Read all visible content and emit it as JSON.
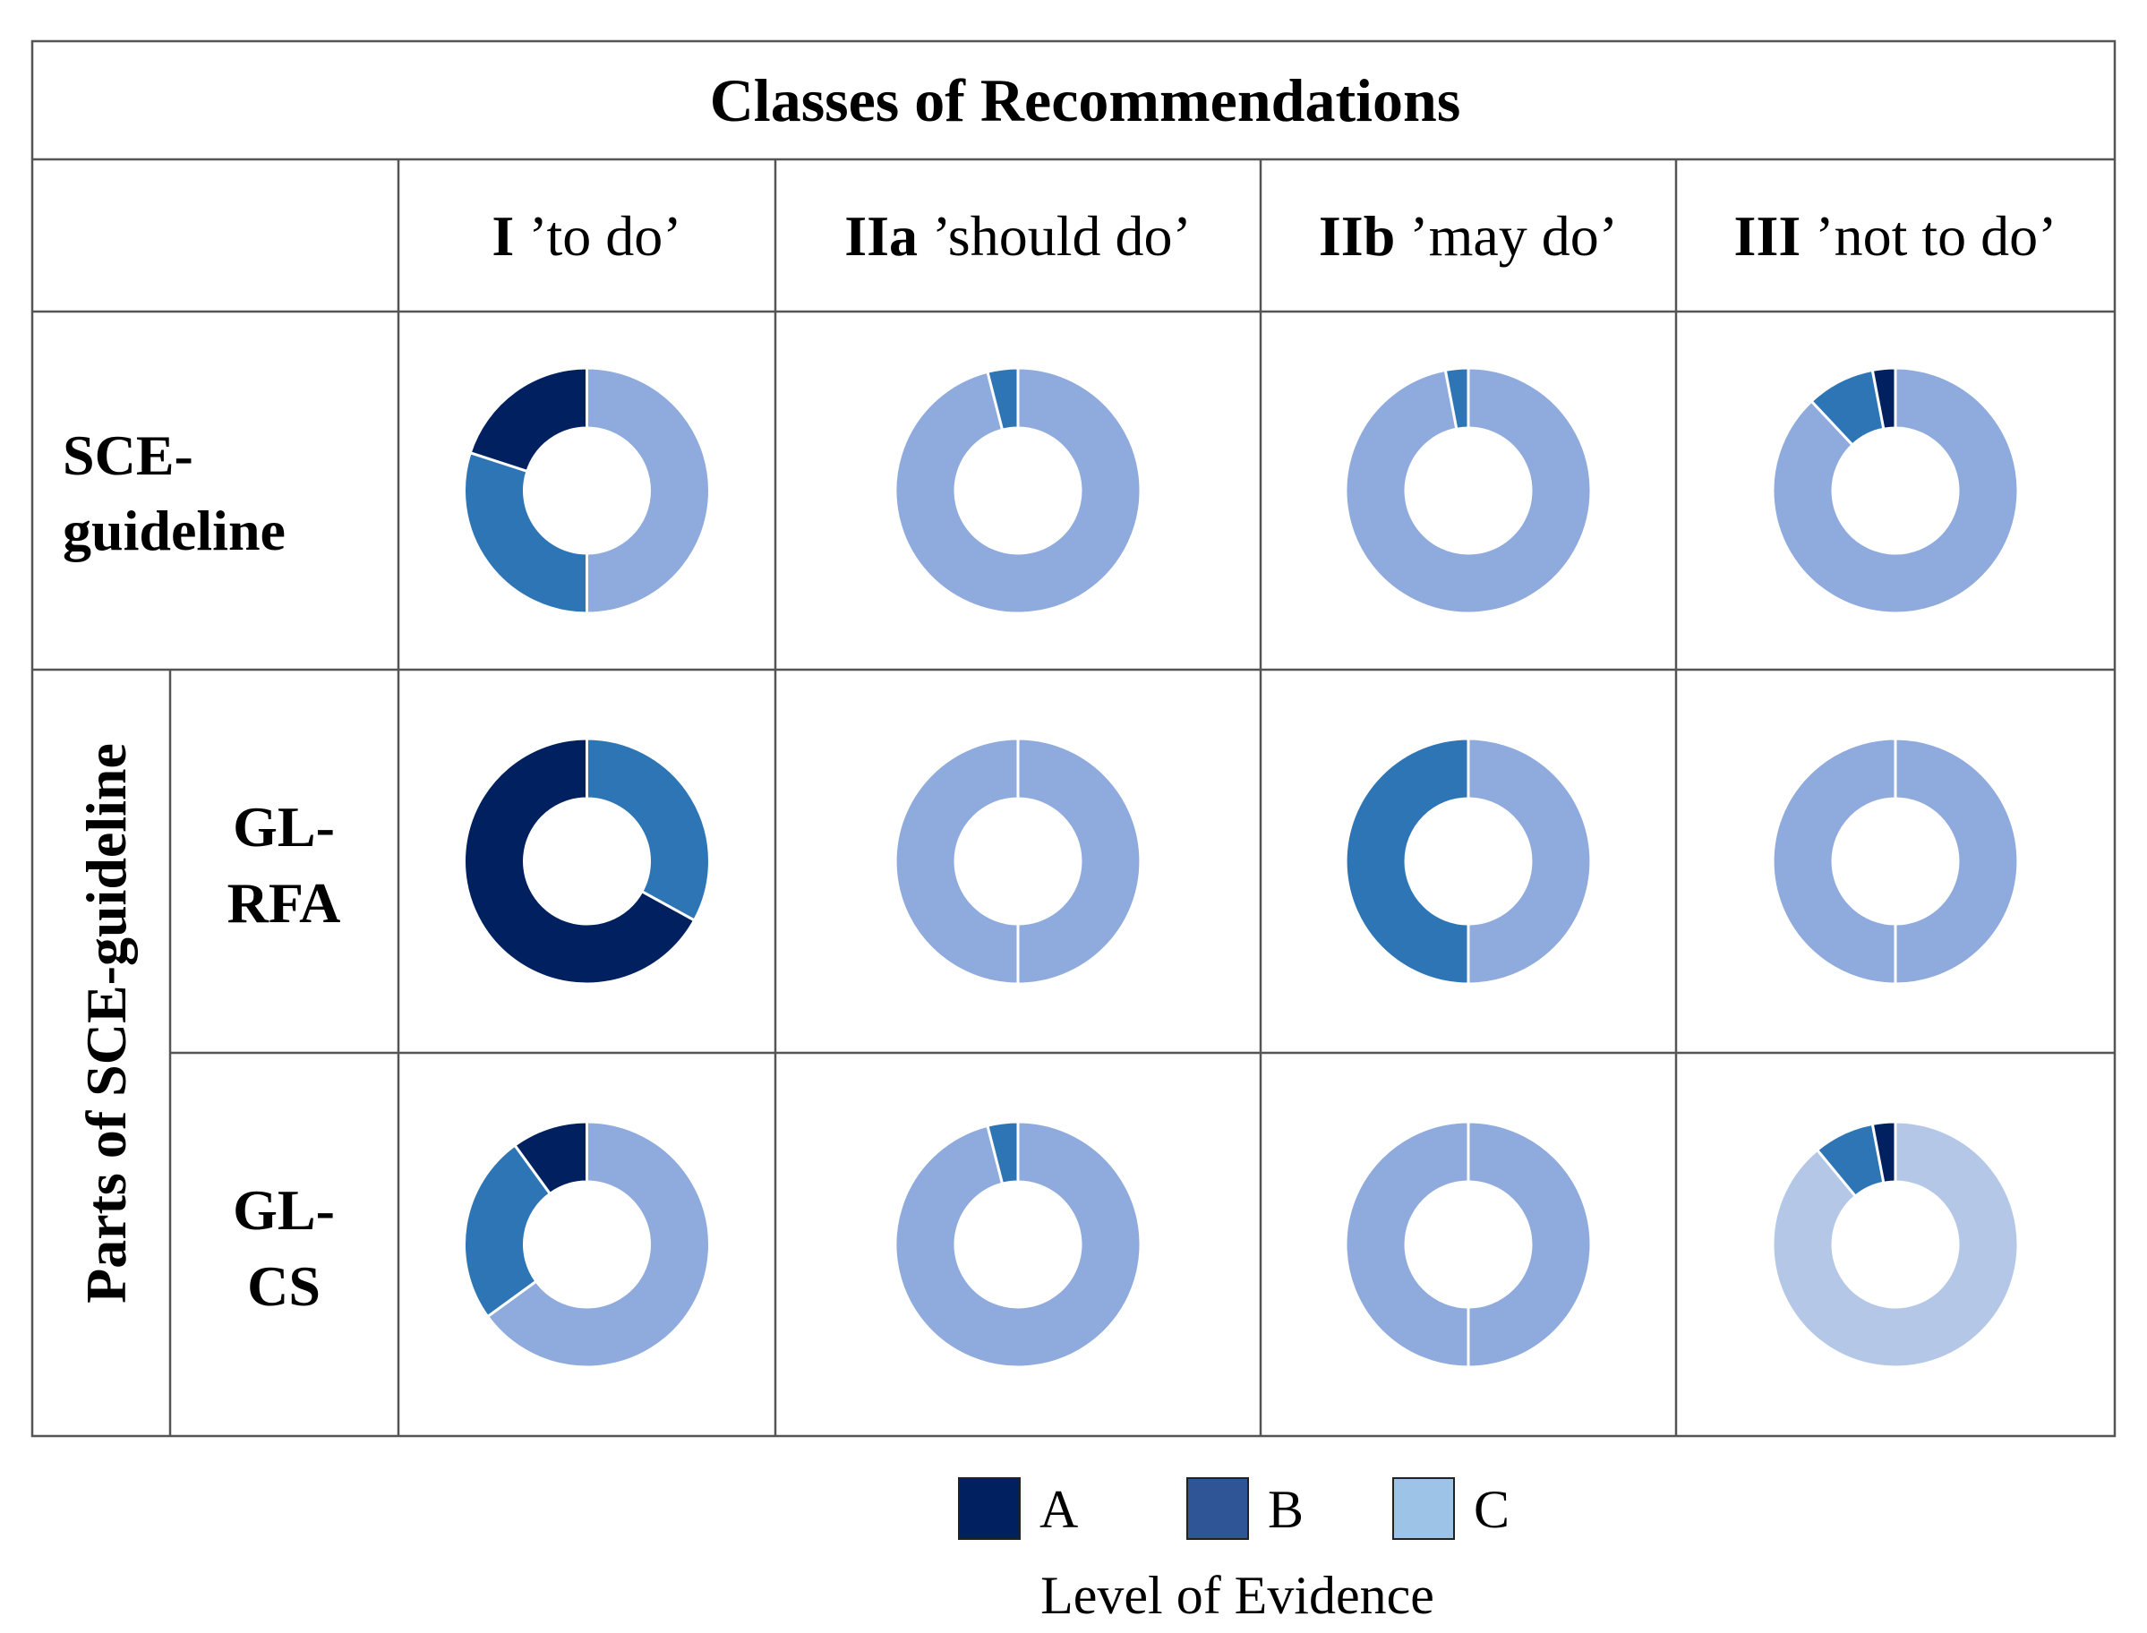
{
  "chart_data": {
    "type": "pie",
    "title": "Classes of Recommendations",
    "columns": [
      {
        "strong": "I",
        "rest": "’to do’"
      },
      {
        "strong": "IIa",
        "rest": "’should do’"
      },
      {
        "strong": "IIb",
        "rest": "’may do’"
      },
      {
        "strong": "III",
        "rest": "’not to do’"
      }
    ],
    "group_label": "Parts of SCE-guideline",
    "rows": [
      {
        "label": [
          "SCE-",
          "guideline"
        ]
      },
      {
        "label": [
          "GL-",
          "RFA"
        ]
      },
      {
        "label": [
          "GL-",
          "CS"
        ]
      }
    ],
    "categories": [
      "A",
      "B",
      "C"
    ],
    "colors": {
      "A": "#002060",
      "B": "#2e75b6",
      "C": "#8faadc",
      "C_light": "#b4c7e7"
    },
    "legend_colors": {
      "A": "#002060",
      "B": "#2f5597",
      "C": "#9dc3e6"
    },
    "legend_title": "Level of Evidence",
    "series": [
      {
        "row": 0,
        "col": 0,
        "A": 20,
        "B": 30,
        "C": 50
      },
      {
        "row": 0,
        "col": 1,
        "A": 0,
        "B": 4,
        "C": 96
      },
      {
        "row": 0,
        "col": 2,
        "A": 0,
        "B": 3,
        "C": 97
      },
      {
        "row": 0,
        "col": 3,
        "A": 3,
        "B": 9,
        "C": 88
      },
      {
        "row": 1,
        "col": 0,
        "A": 67,
        "B": 33,
        "C": 0
      },
      {
        "row": 1,
        "col": 1,
        "A": 0,
        "B": 0,
        "C": 100
      },
      {
        "row": 1,
        "col": 2,
        "A": 0,
        "B": 50,
        "C": 50
      },
      {
        "row": 1,
        "col": 3,
        "A": 0,
        "B": 0,
        "C": 100
      },
      {
        "row": 2,
        "col": 0,
        "A": 10,
        "B": 25,
        "C": 65
      },
      {
        "row": 2,
        "col": 1,
        "A": 0,
        "B": 4,
        "C": 96
      },
      {
        "row": 2,
        "col": 2,
        "A": 0,
        "B": 0,
        "C": 100
      },
      {
        "row": 2,
        "col": 3,
        "A": 3,
        "B": 8,
        "C": 89,
        "light": true
      }
    ]
  }
}
